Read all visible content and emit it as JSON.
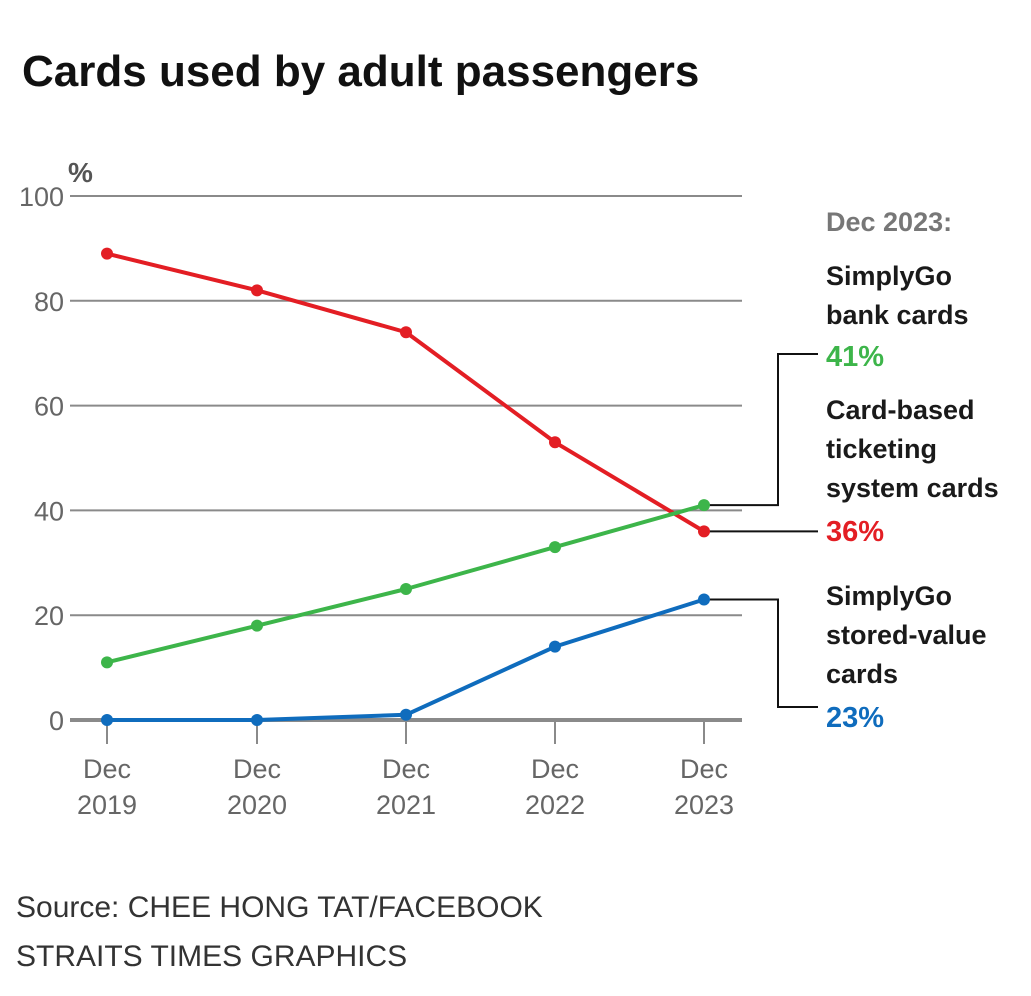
{
  "chart_data": {
    "type": "line",
    "title": "Cards used by adult passengers",
    "ylabel": "%",
    "xlabel": "",
    "ylim": [
      0,
      100
    ],
    "yticks": [
      0,
      20,
      40,
      60,
      80,
      100
    ],
    "grid": true,
    "x": [
      "Dec 2019",
      "Dec 2020",
      "Dec 2021",
      "Dec 2022",
      "Dec 2023"
    ],
    "x_tick_lines": [
      [
        "Dec",
        "2019"
      ],
      [
        "Dec",
        "2020"
      ],
      [
        "Dec",
        "2021"
      ],
      [
        "Dec",
        "2022"
      ],
      [
        "Dec",
        "2023"
      ]
    ],
    "series": [
      {
        "name": "Card-based ticketing system cards",
        "label_lines": [
          "Card-based",
          "ticketing",
          "system cards"
        ],
        "color": "#e31e24",
        "values": [
          89,
          82,
          74,
          53,
          36
        ],
        "final_label": "36%"
      },
      {
        "name": "SimplyGo bank cards",
        "label_lines": [
          "SimplyGo",
          "bank cards"
        ],
        "color": "#3db54a",
        "values": [
          11,
          18,
          25,
          33,
          41
        ],
        "final_label": "41%"
      },
      {
        "name": "SimplyGo stored-value cards",
        "label_lines": [
          "SimplyGo",
          "stored-value",
          "cards"
        ],
        "color": "#0f6cbd",
        "values": [
          0,
          0,
          1,
          14,
          23
        ],
        "final_label": "23%"
      }
    ],
    "annotation_heading": "Dec 2023:",
    "legend": "right, direct labels",
    "source": "Source: CHEE HONG TAT/FACEBOOK",
    "credit": "STRAITS TIMES GRAPHICS"
  }
}
